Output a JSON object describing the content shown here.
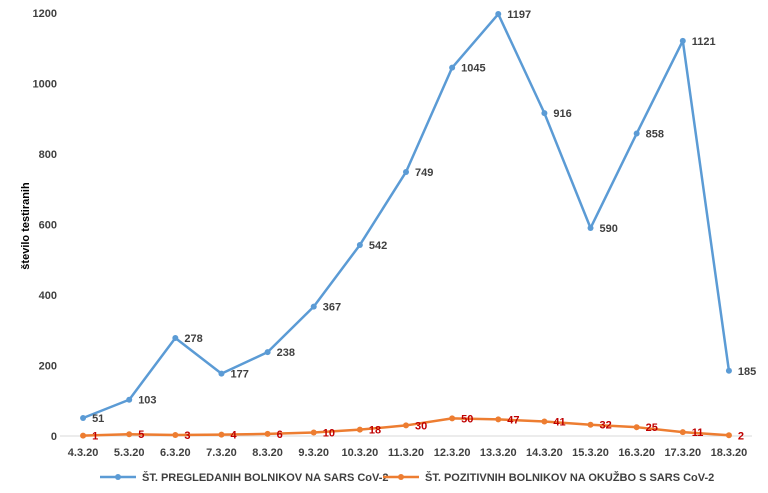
{
  "chart_data": {
    "type": "line",
    "ylabel": "število testiranih",
    "ylim": [
      0,
      1200
    ],
    "yticks": [
      "0",
      "200",
      "400",
      "600",
      "800",
      "1000",
      "1200"
    ],
    "grid": false,
    "legend_position": "bottom",
    "categories": [
      "4.3.20",
      "5.3.20",
      "6.3.20",
      "7.3.20",
      "8.3.20",
      "9.3.20",
      "10.3.20",
      "11.3.20",
      "12.3.20",
      "13.3.20",
      "14.3.20",
      "15.3.20",
      "16.3.20",
      "17.3.20",
      "18.3.20"
    ],
    "series": [
      {
        "name": "ŠT. PREGLEDANIH BOLNIKOV NA SARS CoV-2",
        "color": "#5b9bd5",
        "label_color": "#404040",
        "values": [
          51,
          103,
          278,
          177,
          238,
          367,
          542,
          749,
          1045,
          1197,
          916,
          590,
          858,
          1121,
          185
        ]
      },
      {
        "name": "ŠT. POZITIVNIH BOLNIKOV NA OKUŽBO S SARS CoV-2",
        "color": "#ed7d31",
        "label_color": "#c00000",
        "values": [
          1,
          5,
          3,
          4,
          6,
          10,
          18,
          30,
          50,
          47,
          41,
          32,
          25,
          11,
          2
        ]
      }
    ]
  }
}
